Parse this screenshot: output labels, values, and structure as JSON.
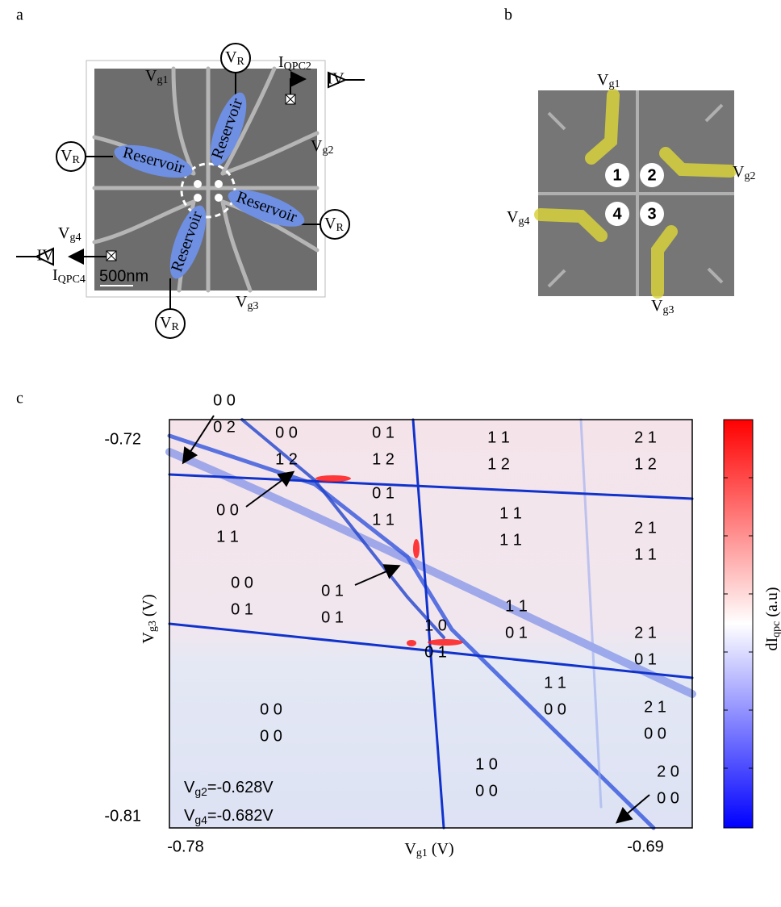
{
  "panel_labels": [
    "a",
    "b",
    "c"
  ],
  "panel_a": {
    "gates": [
      {
        "base": "V",
        "sub": "g1"
      },
      {
        "base": "V",
        "sub": "g2"
      },
      {
        "base": "V",
        "sub": "g3"
      },
      {
        "base": "V",
        "sub": "g4"
      }
    ],
    "reservoir_voltages": [
      {
        "base": "V",
        "sub": "R"
      },
      {
        "base": "V",
        "sub": "R"
      },
      {
        "base": "V",
        "sub": "R"
      },
      {
        "base": "V",
        "sub": "R"
      }
    ],
    "qpc_currents": [
      {
        "base": "I",
        "sub": "QPC2"
      },
      {
        "base": "I",
        "sub": "QPC4"
      }
    ],
    "amplifiers": [
      "IV",
      "IV"
    ],
    "reservoirs": [
      "Reservoir",
      "Reservoir",
      "Reservoir",
      "Reservoir"
    ],
    "scale_bar": "500nm"
  },
  "panel_b": {
    "gates": [
      {
        "base": "V",
        "sub": "g1"
      },
      {
        "base": "V",
        "sub": "g2"
      },
      {
        "base": "V",
        "sub": "g3"
      },
      {
        "base": "V",
        "sub": "g4"
      }
    ],
    "dots": [
      "1",
      "2",
      "3",
      "4"
    ]
  },
  "panel_c": {
    "y_ticks": [
      "-0.72",
      "-0.81"
    ],
    "x_ticks": [
      "-0.78",
      "-0.69"
    ],
    "x_label": {
      "base": "V",
      "sub": "g1",
      "rest": " (V)"
    },
    "y_label": {
      "base": "V",
      "sub": "g3",
      "rest": " (V)"
    },
    "colorbar_label": {
      "base": "dI",
      "sub": "qpc",
      "rest": " (a.u)"
    },
    "regions": [
      {
        "top": "0 0",
        "bottom": "0 2"
      },
      {
        "top": "0 0",
        "bottom": "1 2"
      },
      {
        "top": "0 1",
        "bottom": "1 2"
      },
      {
        "top": "1 1",
        "bottom": "1 2"
      },
      {
        "top": "2 1",
        "bottom": "1 2"
      },
      {
        "top": "0 1",
        "bottom": "1 1"
      },
      {
        "top": "0 0",
        "bottom": "1 1"
      },
      {
        "top": "1 1",
        "bottom": "1 1"
      },
      {
        "top": "2 1",
        "bottom": "1 1"
      },
      {
        "top": "0 0",
        "bottom": "0 1"
      },
      {
        "top": "0 1",
        "bottom": "0 1"
      },
      {
        "top": "1 1",
        "bottom": "0 1"
      },
      {
        "top": "1 0",
        "bottom": "0 1"
      },
      {
        "top": "2 1",
        "bottom": "0 1"
      },
      {
        "top": "1 1",
        "bottom": "0 0"
      },
      {
        "top": "2 1",
        "bottom": "0 0"
      },
      {
        "top": "0 0",
        "bottom": "0 0"
      },
      {
        "top": "1 0",
        "bottom": "0 0"
      },
      {
        "top": "2 0",
        "bottom": "0 0"
      }
    ],
    "conditions": [
      {
        "base": "V",
        "sub": "g2",
        "rest": "=-0.628V"
      },
      {
        "base": "V",
        "sub": "g4",
        "rest": "=-0.682V"
      }
    ]
  }
}
